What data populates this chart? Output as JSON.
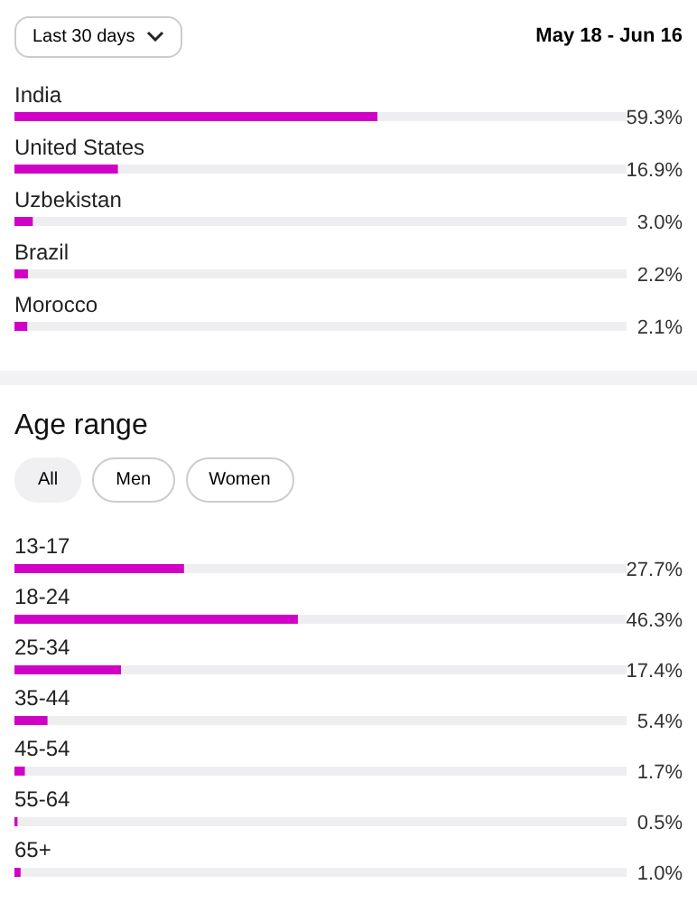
{
  "chart_data": [
    {
      "type": "bar",
      "orientation": "horizontal",
      "categories": [
        "India",
        "United States",
        "Uzbekistan",
        "Brazil",
        "Morocco"
      ],
      "values": [
        59.3,
        16.9,
        3.0,
        2.2,
        2.1
      ],
      "value_labels": [
        "59.3%",
        "16.9%",
        "3.0%",
        "2.2%",
        "2.1%"
      ],
      "color": "#d100c6",
      "xlim": [
        0,
        100
      ],
      "tick_labels": "y",
      "annotations": [
        "Last 30 days",
        "May 18 - Jun 16"
      ]
    },
    {
      "type": "bar",
      "orientation": "horizontal",
      "title": "Age range",
      "categories": [
        "13-17",
        "18-24",
        "25-34",
        "35-44",
        "45-54",
        "55-64",
        "65+"
      ],
      "values": [
        27.7,
        46.3,
        17.4,
        5.4,
        1.7,
        0.5,
        1.0
      ],
      "value_labels": [
        "27.7%",
        "46.3%",
        "17.4%",
        "5.4%",
        "1.7%",
        "0.5%",
        "1.0%"
      ],
      "color": "#d100c6",
      "xlim": [
        0,
        100
      ],
      "tick_labels": "y",
      "annotations": [
        "All",
        "Men",
        "Women"
      ]
    }
  ]
}
